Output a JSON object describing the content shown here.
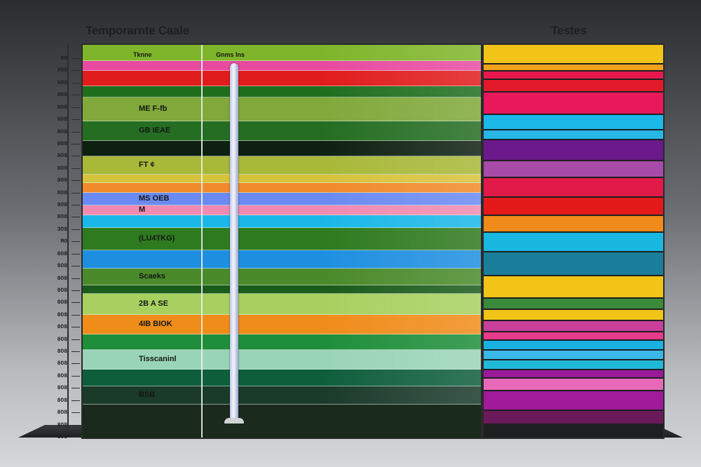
{
  "titles": {
    "left": "Temporarnte Caale",
    "right": "Testes"
  },
  "axis": {
    "ticks": [
      "8O",
      "8OO",
      "8OO",
      "8O8",
      "8O8",
      "8O8",
      "8O8",
      "8O0",
      "8O8",
      "8O0",
      "8O0",
      "8O8",
      "8O8",
      "8O8",
      "3O8",
      "MO",
      "8O8",
      "8O8",
      "8O8",
      "8O8",
      "8O8",
      "8O8",
      "8O8",
      "8O8",
      "8O8",
      "8O8",
      "8O8",
      "8O8",
      "8O8",
      "8O8",
      "8O8",
      "8O8"
    ]
  },
  "main": {
    "header": {
      "left_label": "Tknne",
      "center_label": "Gnms Ins"
    },
    "bands": [
      {
        "label": "",
        "color": "#7fb52a"
      },
      {
        "label": "",
        "color": "#e84aa0"
      },
      {
        "label": "",
        "color": "#e11c1c"
      },
      {
        "label": "",
        "color": "#1e6e1e"
      },
      {
        "label": "ME F-fb",
        "color": "#80a83a"
      },
      {
        "label": "GB IEAE",
        "color": "#246d22"
      },
      {
        "label": "",
        "color": "#0e2010"
      },
      {
        "label": "FT ¢",
        "color": "#a8b838"
      },
      {
        "label": "",
        "color": "#d7c23c"
      },
      {
        "label": "",
        "color": "#f08a2a"
      },
      {
        "label": "MS OEB",
        "color": "#6a8af2"
      },
      {
        "label": "M",
        "color": "#f08ab0"
      },
      {
        "label": "",
        "color": "#1ab8e8"
      },
      {
        "label": "(LU4TKG)",
        "color": "#2e7a1e"
      },
      {
        "label": "",
        "color": "#1e8fe0"
      },
      {
        "label": "Scaeks",
        "color": "#4a8a2a"
      },
      {
        "label": "",
        "color": "#1a5a1a"
      },
      {
        "label": "2B A SE",
        "color": "#a8d060"
      },
      {
        "label": "4IB BIOK",
        "color": "#f08c1a"
      },
      {
        "label": "",
        "color": "#1e8e3a"
      },
      {
        "label": "Tisscaninl",
        "color": "#9ad4b8"
      },
      {
        "label": "",
        "color": "#0e5e3c"
      },
      {
        "label": "BSB",
        "color": "#1a3a2a"
      }
    ]
  },
  "right": {
    "stripes": [
      {
        "color": "#f3c418"
      },
      {
        "color": "#f1a11a"
      },
      {
        "color": "#e8184e"
      },
      {
        "color": "#e21a2a"
      },
      {
        "color": "#e8185a"
      },
      {
        "color": "#1bb8e8"
      },
      {
        "color": "#27b6e6"
      },
      {
        "color": "#6a1a8a"
      },
      {
        "color": "#a84aa8"
      },
      {
        "color": "#e21a4a"
      },
      {
        "color": "#e41a1a"
      },
      {
        "color": "#f08a1a"
      },
      {
        "color": "#1ab8e0"
      },
      {
        "color": "#1a7e9a"
      },
      {
        "color": "#f3c418"
      },
      {
        "color": "#3a8a3a"
      },
      {
        "color": "#f3c418"
      },
      {
        "color": "#c8409a"
      },
      {
        "color": "#e83a8a"
      },
      {
        "color": "#1ab0e0"
      },
      {
        "color": "#3ab8e8"
      },
      {
        "color": "#22b8d8"
      },
      {
        "color": "#9a1a9a"
      },
      {
        "color": "#e868b8"
      },
      {
        "color": "#a01a9a"
      },
      {
        "color": "#6a1a5a"
      }
    ]
  }
}
